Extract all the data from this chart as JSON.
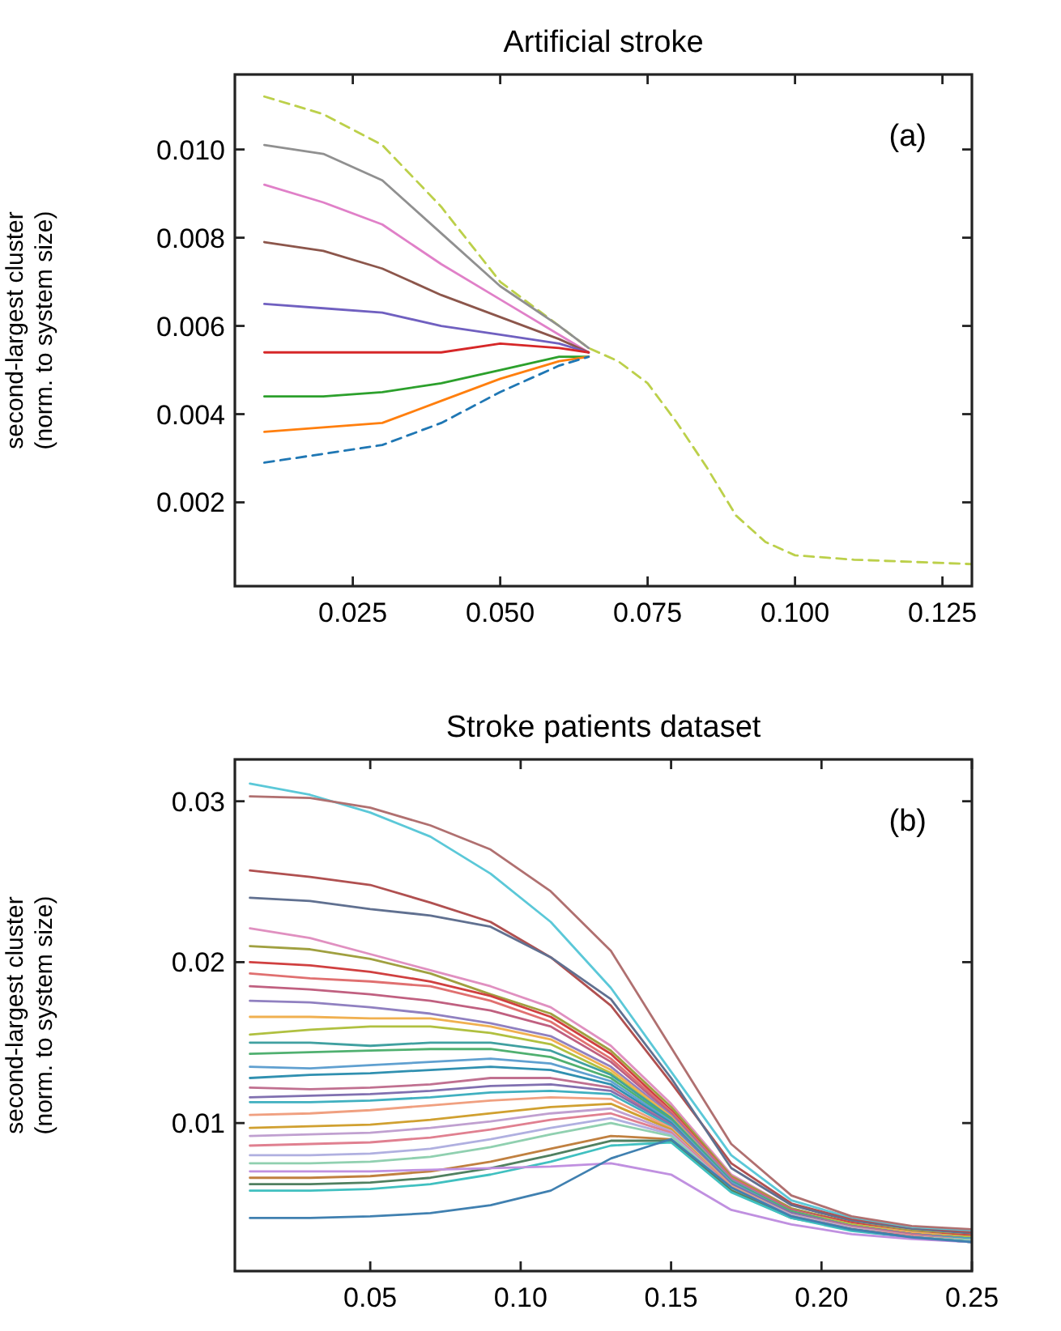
{
  "chart_data": [
    {
      "type": "line",
      "title": "Artificial stroke",
      "ylabel": "second-largest cluster\n(norm. to system size)",
      "annotations": [
        "(a)"
      ],
      "x": [
        0.01,
        0.02,
        0.03,
        0.04,
        0.05,
        0.06,
        0.065,
        0.07,
        0.075,
        0.08,
        0.085,
        0.09,
        0.095,
        0.1,
        0.11,
        0.12,
        0.13
      ],
      "xlim": [
        0.005,
        0.13
      ],
      "xticks": [
        {
          "value": 0.025,
          "label": "0.025"
        },
        {
          "value": 0.05,
          "label": "0.050"
        },
        {
          "value": 0.075,
          "label": "0.075"
        },
        {
          "value": 0.1,
          "label": "0.100"
        },
        {
          "value": 0.125,
          "label": "0.125"
        }
      ],
      "ylim": [
        0.0001,
        0.0117
      ],
      "yticks": [
        {
          "value": 0.002,
          "label": "0.002"
        },
        {
          "value": 0.004,
          "label": "0.004"
        },
        {
          "value": 0.006,
          "label": "0.006"
        },
        {
          "value": 0.008,
          "label": "0.008"
        },
        {
          "value": 0.01,
          "label": "0.010"
        }
      ],
      "grid": false,
      "marker": "none",
      "line_style": "solid",
      "series": [
        {
          "color": "#bcd04a",
          "line_style": "dashed",
          "values": [
            0.0112,
            0.0108,
            0.0101,
            0.0087,
            0.007,
            0.006,
            0.0055,
            0.0052,
            0.0047,
            0.0038,
            0.0028,
            0.0017,
            0.0011,
            0.0008,
            0.0007,
            0.00065,
            0.0006
          ]
        },
        {
          "color": "#909090",
          "values": [
            0.0101,
            0.0099,
            0.0093,
            0.0081,
            0.0069,
            0.006,
            0.0055,
            null,
            null,
            null,
            null,
            null,
            null,
            null,
            null,
            null,
            null
          ]
        },
        {
          "color": "#e080c8",
          "values": [
            0.0092,
            0.0088,
            0.0083,
            0.0074,
            0.0066,
            0.0058,
            0.0054,
            null,
            null,
            null,
            null,
            null,
            null,
            null,
            null,
            null,
            null
          ]
        },
        {
          "color": "#8c564b",
          "values": [
            0.0079,
            0.0077,
            0.0073,
            0.0067,
            0.0062,
            0.0057,
            0.0054,
            null,
            null,
            null,
            null,
            null,
            null,
            null,
            null,
            null,
            null
          ]
        },
        {
          "color": "#7060c0",
          "values": [
            0.0065,
            0.0064,
            0.0063,
            0.006,
            0.0058,
            0.0056,
            0.0054,
            null,
            null,
            null,
            null,
            null,
            null,
            null,
            null,
            null,
            null
          ]
        },
        {
          "color": "#d62728",
          "values": [
            0.0054,
            0.0054,
            0.0054,
            0.0054,
            0.0056,
            0.0055,
            0.0054,
            null,
            null,
            null,
            null,
            null,
            null,
            null,
            null,
            null,
            null
          ]
        },
        {
          "color": "#2ca02c",
          "values": [
            0.0044,
            0.0044,
            0.0045,
            0.0047,
            0.005,
            0.0053,
            0.0053,
            null,
            null,
            null,
            null,
            null,
            null,
            null,
            null,
            null,
            null
          ]
        },
        {
          "color": "#ff7f0e",
          "values": [
            0.0036,
            0.0037,
            0.0038,
            0.0043,
            0.0048,
            0.0052,
            0.0053,
            null,
            null,
            null,
            null,
            null,
            null,
            null,
            null,
            null,
            null
          ]
        },
        {
          "color": "#1f77b4",
          "line_style": "dashed",
          "values": [
            0.0029,
            0.0031,
            0.0033,
            0.0038,
            0.0045,
            0.0051,
            0.0053,
            null,
            null,
            null,
            null,
            null,
            null,
            null,
            null,
            null,
            null
          ]
        }
      ]
    },
    {
      "type": "line",
      "title": "Stroke patients dataset",
      "ylabel": "second-largest cluster\n(norm. to system size)",
      "annotations": [
        "(b)"
      ],
      "x": [
        0.01,
        0.03,
        0.05,
        0.07,
        0.09,
        0.11,
        0.13,
        0.15,
        0.17,
        0.19,
        0.21,
        0.23,
        0.25
      ],
      "xlim": [
        0.005,
        0.25
      ],
      "xticks": [
        {
          "value": 0.05,
          "label": "0.05"
        },
        {
          "value": 0.1,
          "label": "0.10"
        },
        {
          "value": 0.15,
          "label": "0.15"
        },
        {
          "value": 0.2,
          "label": "0.20"
        },
        {
          "value": 0.25,
          "label": "0.25"
        }
      ],
      "ylim": [
        0.0008,
        0.0326
      ],
      "yticks": [
        0.01,
        0.02,
        0.03
      ],
      "grid": false,
      "marker": "none",
      "line_style": "solid",
      "series": [
        {
          "color": "#5bc8d8",
          "values": [
            0.0311,
            0.0304,
            0.0293,
            0.0278,
            0.0255,
            0.0225,
            0.0184,
            0.0132,
            0.008,
            0.0052,
            0.0041,
            0.0035,
            0.0033
          ]
        },
        {
          "color": "#b07070",
          "values": [
            0.0303,
            0.0302,
            0.0296,
            0.0285,
            0.027,
            0.0244,
            0.0207,
            0.0147,
            0.0087,
            0.0055,
            0.0042,
            0.0036,
            0.0034
          ]
        },
        {
          "color": "#b05050",
          "values": [
            0.0257,
            0.0253,
            0.0248,
            0.0237,
            0.0225,
            0.0203,
            0.0173,
            0.0125,
            0.0075,
            0.005,
            0.004,
            0.0034,
            0.0032
          ]
        },
        {
          "color": "#607090",
          "values": [
            0.024,
            0.0238,
            0.0233,
            0.0229,
            0.0222,
            0.0203,
            0.0177,
            0.0128,
            0.0072,
            0.0049,
            0.0039,
            0.0034,
            0.0031
          ]
        },
        {
          "color": "#e090c0",
          "values": [
            0.0221,
            0.0215,
            0.0205,
            0.0195,
            0.0185,
            0.0172,
            0.0148,
            0.0112,
            0.0068,
            0.0047,
            0.0038,
            0.0033,
            0.003
          ]
        },
        {
          "color": "#a0a040",
          "values": [
            0.021,
            0.0208,
            0.0202,
            0.0193,
            0.018,
            0.0168,
            0.0145,
            0.011,
            0.0067,
            0.0047,
            0.0038,
            0.0033,
            0.003
          ]
        },
        {
          "color": "#d04040",
          "values": [
            0.02,
            0.0198,
            0.0194,
            0.0188,
            0.0179,
            0.0166,
            0.0143,
            0.0108,
            0.0066,
            0.0046,
            0.0038,
            0.0032,
            0.003
          ]
        },
        {
          "color": "#e07070",
          "values": [
            0.0193,
            0.019,
            0.0188,
            0.0185,
            0.0176,
            0.0163,
            0.014,
            0.0107,
            0.0066,
            0.0046,
            0.0037,
            0.0032,
            0.0029
          ]
        },
        {
          "color": "#c06080",
          "values": [
            0.0185,
            0.0183,
            0.018,
            0.0176,
            0.017,
            0.016,
            0.0138,
            0.0106,
            0.0065,
            0.0046,
            0.0037,
            0.0032,
            0.0029
          ]
        },
        {
          "color": "#9080c0",
          "values": [
            0.0176,
            0.0175,
            0.0172,
            0.0168,
            0.0162,
            0.0154,
            0.0135,
            0.0105,
            0.0065,
            0.0045,
            0.0037,
            0.0032,
            0.0029
          ]
        },
        {
          "color": "#f0b050",
          "values": [
            0.0166,
            0.0166,
            0.0165,
            0.0165,
            0.016,
            0.0152,
            0.0133,
            0.0104,
            0.0064,
            0.0045,
            0.0037,
            0.0032,
            0.0029
          ]
        },
        {
          "color": "#b0c040",
          "values": [
            0.0155,
            0.0158,
            0.016,
            0.016,
            0.0156,
            0.0149,
            0.0131,
            0.0103,
            0.0064,
            0.0045,
            0.0037,
            0.0031,
            0.0029
          ]
        },
        {
          "color": "#40a0a0",
          "values": [
            0.015,
            0.015,
            0.0148,
            0.015,
            0.015,
            0.0145,
            0.013,
            0.0103,
            0.0064,
            0.0045,
            0.0036,
            0.0031,
            0.0028
          ]
        },
        {
          "color": "#50b070",
          "values": [
            0.0143,
            0.0144,
            0.0145,
            0.0146,
            0.0146,
            0.0141,
            0.0128,
            0.0102,
            0.0063,
            0.0045,
            0.0036,
            0.0031,
            0.0028
          ]
        },
        {
          "color": "#60a0d0",
          "values": [
            0.0135,
            0.0134,
            0.0136,
            0.0138,
            0.014,
            0.0137,
            0.0126,
            0.0101,
            0.0063,
            0.0044,
            0.0036,
            0.0031,
            0.0028
          ]
        },
        {
          "color": "#3090b0",
          "values": [
            0.0128,
            0.013,
            0.0131,
            0.0133,
            0.0135,
            0.0133,
            0.0124,
            0.01,
            0.0062,
            0.0044,
            0.0036,
            0.0031,
            0.0028
          ]
        },
        {
          "color": "#c07090",
          "values": [
            0.0122,
            0.0121,
            0.0122,
            0.0124,
            0.0128,
            0.0128,
            0.0122,
            0.0099,
            0.0062,
            0.0044,
            0.0036,
            0.0031,
            0.0028
          ]
        },
        {
          "color": "#8070b0",
          "values": [
            0.0116,
            0.0117,
            0.0118,
            0.012,
            0.0123,
            0.0124,
            0.012,
            0.0099,
            0.0062,
            0.0044,
            0.0035,
            0.003,
            0.0028
          ]
        },
        {
          "color": "#40b0c0",
          "values": [
            0.0113,
            0.0113,
            0.0114,
            0.0116,
            0.0119,
            0.012,
            0.0118,
            0.0098,
            0.0061,
            0.0043,
            0.0035,
            0.003,
            0.0028
          ]
        },
        {
          "color": "#f0a080",
          "values": [
            0.0105,
            0.0106,
            0.0108,
            0.0111,
            0.0114,
            0.0116,
            0.0115,
            0.0097,
            0.0061,
            0.0043,
            0.0035,
            0.003,
            0.0027
          ]
        },
        {
          "color": "#d0a030",
          "values": [
            0.0097,
            0.0098,
            0.0099,
            0.0102,
            0.0106,
            0.011,
            0.0112,
            0.0096,
            0.006,
            0.0043,
            0.0035,
            0.003,
            0.0027
          ]
        },
        {
          "color": "#c0a0d0",
          "values": [
            0.0092,
            0.0093,
            0.0094,
            0.0097,
            0.0101,
            0.0106,
            0.0109,
            0.0095,
            0.006,
            0.0043,
            0.0035,
            0.003,
            0.0027
          ]
        },
        {
          "color": "#e08090",
          "values": [
            0.0086,
            0.0087,
            0.0088,
            0.0091,
            0.0096,
            0.0102,
            0.0106,
            0.0094,
            0.006,
            0.0042,
            0.0034,
            0.003,
            0.0027
          ]
        },
        {
          "color": "#b0b0e0",
          "values": [
            0.008,
            0.008,
            0.0081,
            0.0084,
            0.009,
            0.0097,
            0.0103,
            0.0093,
            0.0059,
            0.0042,
            0.0034,
            0.0029,
            0.0027
          ]
        },
        {
          "color": "#90d0b0",
          "values": [
            0.0075,
            0.0075,
            0.0076,
            0.0079,
            0.0085,
            0.0093,
            0.01,
            0.0092,
            0.0059,
            0.0042,
            0.0034,
            0.0029,
            0.0027
          ]
        },
        {
          "color": "#c08040",
          "values": [
            0.0066,
            0.0066,
            0.0067,
            0.007,
            0.0076,
            0.0084,
            0.0092,
            0.009,
            0.0058,
            0.0042,
            0.0034,
            0.0029,
            0.0026
          ]
        },
        {
          "color": "#508060",
          "values": [
            0.0062,
            0.0062,
            0.0063,
            0.0066,
            0.0072,
            0.008,
            0.0089,
            0.0089,
            0.0058,
            0.0041,
            0.0034,
            0.0029,
            0.0026
          ]
        },
        {
          "color": "#40c0c0",
          "values": [
            0.0058,
            0.0058,
            0.0059,
            0.0062,
            0.0068,
            0.0076,
            0.0086,
            0.0088,
            0.0057,
            0.0041,
            0.0033,
            0.0029,
            0.0026
          ]
        },
        {
          "color": "#c090e0",
          "values": [
            0.007,
            0.007,
            0.007,
            0.0071,
            0.0072,
            0.0073,
            0.0075,
            0.0068,
            0.0046,
            0.0037,
            0.0031,
            0.0028,
            0.0026
          ]
        },
        {
          "color": "#4080b0",
          "values": [
            0.0041,
            0.0041,
            0.0042,
            0.0044,
            0.0049,
            0.0058,
            0.0078,
            0.009,
            0.006,
            0.0042,
            0.0034,
            0.0029,
            0.0026
          ]
        }
      ]
    }
  ]
}
